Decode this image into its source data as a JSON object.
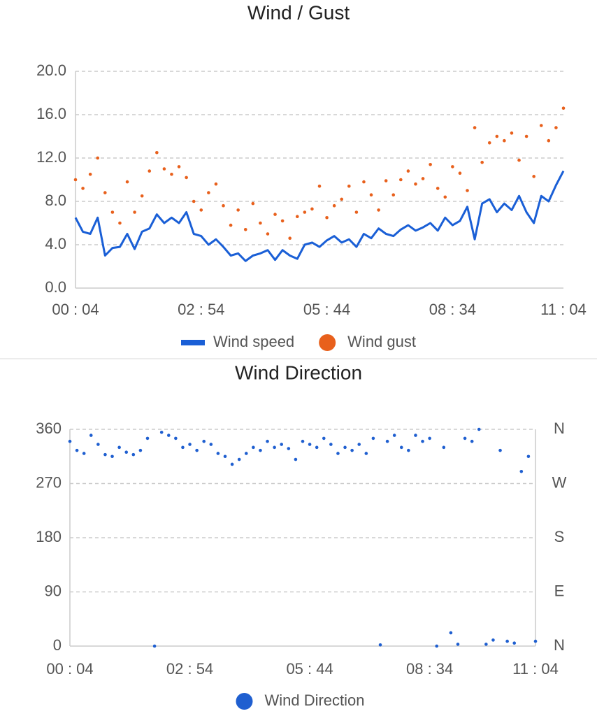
{
  "chart_data": [
    {
      "type": "line",
      "title": "Wind / Gust",
      "x": [
        4,
        14,
        24,
        34,
        44,
        54,
        64,
        74,
        84,
        94,
        104,
        114,
        124,
        134,
        144,
        154,
        164,
        174,
        184,
        194,
        204,
        214,
        224,
        234,
        244,
        254,
        264,
        274,
        284,
        294,
        304,
        314,
        324,
        334,
        344,
        354,
        364,
        374,
        384,
        394,
        404,
        414,
        424,
        434,
        444,
        454,
        464,
        474,
        484,
        494,
        504,
        514,
        524,
        534,
        544,
        554,
        564,
        574,
        584,
        594,
        604,
        614,
        624,
        634,
        644,
        654,
        664
      ],
      "series": [
        {
          "name": "Wind speed",
          "type": "line",
          "color": "#1a5fd6",
          "values": [
            6.5,
            5.2,
            5.0,
            6.5,
            3.0,
            3.7,
            3.8,
            5.0,
            3.6,
            5.2,
            5.5,
            6.8,
            6.0,
            6.5,
            6.0,
            7.0,
            5.0,
            4.8,
            4.0,
            4.5,
            3.8,
            3.0,
            3.2,
            2.5,
            3.0,
            3.2,
            3.5,
            2.6,
            3.5,
            3.0,
            2.7,
            4.0,
            4.2,
            3.8,
            4.4,
            4.8,
            4.2,
            4.5,
            3.8,
            5.0,
            4.6,
            5.5,
            5.0,
            4.8,
            5.4,
            5.8,
            5.3,
            5.6,
            6.0,
            5.3,
            6.5,
            5.8,
            6.2,
            7.5,
            4.5,
            7.8,
            8.2,
            7.0,
            7.8,
            7.2,
            8.5,
            7.0,
            6.0,
            8.5,
            8.0,
            9.5,
            10.8
          ]
        },
        {
          "name": "Wind gust",
          "type": "scatter",
          "color": "#e8601c",
          "values": [
            10.0,
            9.2,
            10.5,
            12.0,
            8.8,
            7.0,
            6.0,
            9.8,
            7.0,
            8.5,
            10.8,
            12.5,
            11.0,
            10.5,
            11.2,
            10.2,
            8.0,
            7.2,
            8.8,
            9.6,
            7.6,
            5.8,
            7.2,
            5.4,
            7.8,
            6.0,
            5.0,
            6.8,
            6.2,
            4.6,
            6.6,
            7.0,
            7.3,
            9.4,
            6.5,
            7.6,
            8.2,
            9.4,
            7.0,
            9.8,
            8.6,
            7.2,
            9.9,
            8.6,
            10.0,
            10.8,
            9.6,
            10.1,
            11.4,
            9.2,
            8.4,
            11.2,
            10.6,
            9.0,
            14.8,
            11.6,
            13.4,
            14.0,
            13.6,
            14.3,
            11.8,
            14.0,
            10.3,
            15.0,
            13.6,
            14.8,
            16.6
          ]
        }
      ],
      "xlim": [
        4,
        664
      ],
      "xticks": [
        {
          "value": 4,
          "label": "00 : 04"
        },
        {
          "value": 174,
          "label": "02 : 54"
        },
        {
          "value": 344,
          "label": "05 : 44"
        },
        {
          "value": 514,
          "label": "08 : 34"
        },
        {
          "value": 664,
          "label": "11 : 04"
        }
      ],
      "ylim": [
        0,
        20
      ],
      "yticks": [
        {
          "value": 0,
          "label": "0.0"
        },
        {
          "value": 4,
          "label": "4.0"
        },
        {
          "value": 8,
          "label": "8.0"
        },
        {
          "value": 12,
          "label": "12.0"
        },
        {
          "value": 16,
          "label": "16.0"
        },
        {
          "value": 20,
          "label": "20.0"
        }
      ],
      "grid": true,
      "legend": "bottom"
    },
    {
      "type": "scatter",
      "title": "Wind Direction",
      "x": [
        4,
        14,
        24,
        34,
        44,
        54,
        64,
        74,
        84,
        94,
        104,
        114,
        124,
        134,
        144,
        154,
        164,
        174,
        184,
        194,
        204,
        214,
        224,
        234,
        244,
        254,
        264,
        274,
        284,
        294,
        304,
        314,
        324,
        334,
        344,
        354,
        364,
        374,
        384,
        394,
        404,
        414,
        424,
        434,
        444,
        454,
        464,
        474,
        484,
        494,
        504,
        514,
        524,
        534,
        544,
        554,
        564,
        574,
        584,
        594,
        604,
        614,
        624,
        634,
        644,
        654,
        664
      ],
      "series": [
        {
          "name": "Wind Direction",
          "type": "scatter",
          "color": "#1f5fd0",
          "values": [
            340,
            325,
            320,
            350,
            335,
            318,
            315,
            330,
            322,
            318,
            325,
            345,
            0,
            355,
            350,
            345,
            330,
            335,
            325,
            340,
            335,
            320,
            315,
            302,
            310,
            320,
            330,
            325,
            340,
            330,
            335,
            328,
            310,
            340,
            335,
            330,
            345,
            335,
            320,
            330,
            325,
            335,
            320,
            345,
            2,
            340,
            350,
            330,
            325,
            350,
            340,
            345,
            0,
            330,
            22,
            3,
            345,
            340,
            360,
            3,
            10,
            325,
            8,
            5,
            290,
            315,
            8
          ]
        }
      ],
      "xlim": [
        4,
        664
      ],
      "xticks": [
        {
          "value": 4,
          "label": "00 : 04"
        },
        {
          "value": 174,
          "label": "02 : 54"
        },
        {
          "value": 344,
          "label": "05 : 44"
        },
        {
          "value": 514,
          "label": "08 : 34"
        },
        {
          "value": 664,
          "label": "11 : 04"
        }
      ],
      "ylim": [
        0,
        360
      ],
      "yticks": [
        0,
        90,
        180,
        270,
        360
      ],
      "y2lim": [
        0,
        360
      ],
      "y2ticks": [
        {
          "value": 0,
          "label": "N"
        },
        {
          "value": 90,
          "label": "E"
        },
        {
          "value": 180,
          "label": "S"
        },
        {
          "value": 270,
          "label": "W"
        },
        {
          "value": 360,
          "label": "N"
        }
      ],
      "grid": true,
      "legend": "bottom"
    }
  ]
}
